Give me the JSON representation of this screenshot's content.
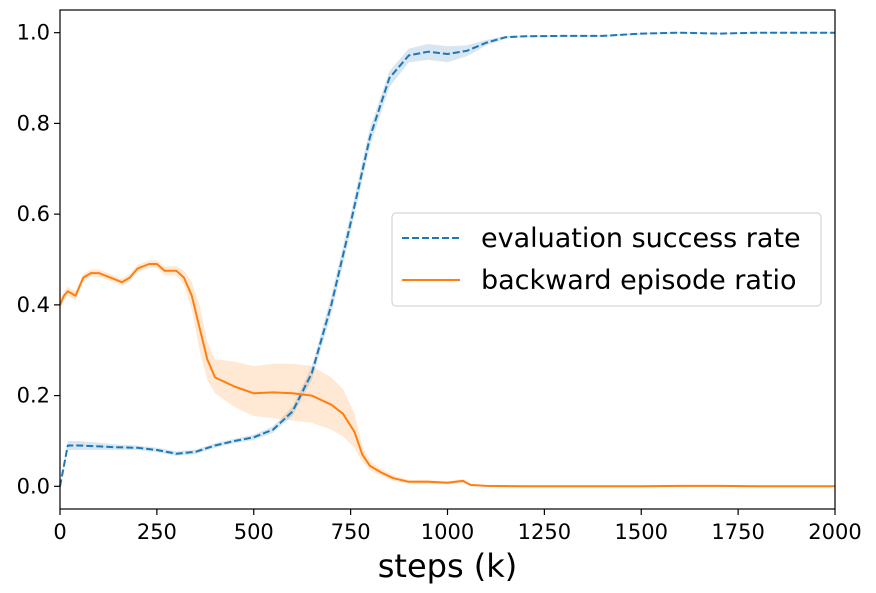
{
  "chart_data": {
    "type": "line",
    "title": "",
    "xlabel": "steps (k)",
    "ylabel": "",
    "xlim": [
      0,
      2000
    ],
    "ylim": [
      -0.05,
      1.05
    ],
    "xticks": [
      0,
      250,
      500,
      750,
      1000,
      1250,
      1500,
      1750,
      2000
    ],
    "xtick_labels": [
      "0",
      "250",
      "500",
      "750",
      "1000",
      "1250",
      "1500",
      "1750",
      "2000"
    ],
    "yticks": [
      0.0,
      0.2,
      0.4,
      0.6,
      0.8,
      1.0
    ],
    "ytick_labels": [
      "0.0",
      "0.2",
      "0.4",
      "0.6",
      "0.8",
      "1.0"
    ],
    "grid": false,
    "legend_position": "center-right",
    "series": [
      {
        "name": "evaluation success rate",
        "color": "#1f77b4",
        "style": "dashed",
        "x": [
          0,
          20,
          50,
          100,
          150,
          200,
          250,
          300,
          350,
          400,
          450,
          500,
          550,
          600,
          650,
          700,
          750,
          800,
          850,
          900,
          950,
          1000,
          1050,
          1100,
          1150,
          1200,
          1300,
          1400,
          1500,
          1600,
          1700,
          1800,
          1900,
          2000
        ],
        "y": [
          0.0,
          0.09,
          0.09,
          0.088,
          0.086,
          0.085,
          0.08,
          0.072,
          0.076,
          0.09,
          0.1,
          0.108,
          0.125,
          0.165,
          0.25,
          0.4,
          0.58,
          0.77,
          0.9,
          0.95,
          0.958,
          0.953,
          0.96,
          0.978,
          0.99,
          0.992,
          0.993,
          0.993,
          0.998,
          1.0,
          0.998,
          1.0,
          1.0,
          1.0
        ],
        "lower": [
          0.0,
          0.08,
          0.08,
          0.08,
          0.08,
          0.08,
          0.075,
          0.067,
          0.071,
          0.085,
          0.095,
          0.102,
          0.118,
          0.155,
          0.235,
          0.38,
          0.56,
          0.75,
          0.88,
          0.935,
          0.94,
          0.935,
          0.948,
          0.972,
          0.987,
          0.99,
          0.991,
          0.991,
          0.996,
          0.999,
          0.997,
          0.999,
          0.999,
          0.999
        ],
        "upper": [
          0.0,
          0.1,
          0.1,
          0.096,
          0.092,
          0.09,
          0.085,
          0.077,
          0.081,
          0.095,
          0.105,
          0.114,
          0.132,
          0.175,
          0.265,
          0.42,
          0.6,
          0.79,
          0.915,
          0.965,
          0.975,
          0.97,
          0.972,
          0.984,
          0.993,
          0.994,
          0.995,
          0.995,
          1.0,
          1.001,
          0.999,
          1.001,
          1.001,
          1.001
        ]
      },
      {
        "name": "backward episode ratio",
        "color": "#ff7f0e",
        "style": "solid",
        "x": [
          0,
          10,
          20,
          40,
          60,
          80,
          100,
          130,
          160,
          180,
          200,
          230,
          250,
          270,
          300,
          320,
          340,
          360,
          380,
          400,
          450,
          500,
          550,
          600,
          650,
          700,
          730,
          760,
          780,
          800,
          830,
          860,
          900,
          950,
          1000,
          1040,
          1060,
          1080,
          1100,
          1200,
          1300,
          1400,
          1500,
          1600,
          1700,
          1800,
          1900,
          2000
        ],
        "y": [
          0.4,
          0.42,
          0.43,
          0.42,
          0.46,
          0.47,
          0.47,
          0.46,
          0.45,
          0.46,
          0.48,
          0.49,
          0.49,
          0.475,
          0.475,
          0.46,
          0.42,
          0.35,
          0.28,
          0.24,
          0.22,
          0.205,
          0.207,
          0.205,
          0.2,
          0.18,
          0.16,
          0.12,
          0.07,
          0.045,
          0.03,
          0.018,
          0.01,
          0.01,
          0.008,
          0.012,
          0.003,
          0.002,
          0.001,
          0.0,
          0.0,
          0.0,
          0.0,
          0.001,
          0.001,
          0.0,
          0.0,
          0.0
        ],
        "lower": [
          0.39,
          0.41,
          0.42,
          0.41,
          0.452,
          0.462,
          0.462,
          0.452,
          0.442,
          0.452,
          0.472,
          0.482,
          0.482,
          0.465,
          0.465,
          0.445,
          0.39,
          0.3,
          0.235,
          0.205,
          0.175,
          0.155,
          0.15,
          0.145,
          0.14,
          0.125,
          0.11,
          0.085,
          0.055,
          0.035,
          0.022,
          0.012,
          0.006,
          0.006,
          0.005,
          0.008,
          0.001,
          0.0,
          0.0,
          0.0,
          0.0,
          0.0,
          0.0,
          0.0,
          0.0,
          0.0,
          0.0,
          0.0
        ],
        "upper": [
          0.41,
          0.43,
          0.44,
          0.43,
          0.468,
          0.478,
          0.478,
          0.468,
          0.458,
          0.468,
          0.488,
          0.498,
          0.498,
          0.485,
          0.485,
          0.475,
          0.45,
          0.4,
          0.32,
          0.28,
          0.275,
          0.265,
          0.27,
          0.27,
          0.265,
          0.24,
          0.215,
          0.16,
          0.09,
          0.055,
          0.038,
          0.024,
          0.014,
          0.014,
          0.011,
          0.016,
          0.005,
          0.004,
          0.002,
          0.001,
          0.001,
          0.001,
          0.001,
          0.002,
          0.002,
          0.001,
          0.001,
          0.001
        ]
      }
    ]
  }
}
